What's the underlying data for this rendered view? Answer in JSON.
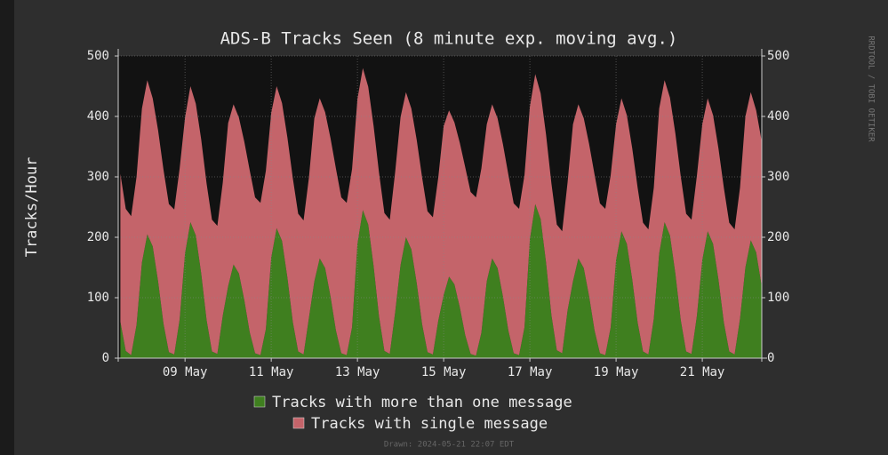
{
  "chart_data": {
    "type": "stacked_area",
    "title": "ADS-B Tracks Seen (8 minute exp. moving avg.)",
    "ylabel": "Tracks/Hour",
    "side_text": "RRDTOOL / TOBI OETIKER",
    "footer": "Drawn: 2024-05-21 22:07 EDT",
    "xlim": [
      7.45,
      22.38
    ],
    "xticks": [
      {
        "value": 9,
        "label": "09 May"
      },
      {
        "value": 11,
        "label": "11 May"
      },
      {
        "value": 13,
        "label": "13 May"
      },
      {
        "value": 15,
        "label": "15 May"
      },
      {
        "value": 17,
        "label": "17 May"
      },
      {
        "value": 19,
        "label": "19 May"
      },
      {
        "value": 21,
        "label": "21 May"
      }
    ],
    "ylim": [
      0,
      500
    ],
    "yticks": [
      0,
      100,
      200,
      300,
      400,
      500
    ],
    "y2lim": [
      0,
      500
    ],
    "y2ticks": [
      0,
      100,
      200,
      300,
      400,
      500
    ],
    "grid": true,
    "x": [
      7.5,
      7.625,
      7.75,
      7.875,
      8,
      8.125,
      8.25,
      8.375,
      8.5,
      8.625,
      8.75,
      8.875,
      9,
      9.125,
      9.25,
      9.375,
      9.5,
      9.625,
      9.75,
      9.875,
      10,
      10.125,
      10.25,
      10.375,
      10.5,
      10.625,
      10.75,
      10.875,
      11,
      11.125,
      11.25,
      11.375,
      11.5,
      11.625,
      11.75,
      11.875,
      12,
      12.125,
      12.25,
      12.375,
      12.5,
      12.625,
      12.75,
      12.875,
      13,
      13.125,
      13.25,
      13.375,
      13.5,
      13.625,
      13.75,
      13.875,
      14,
      14.125,
      14.25,
      14.375,
      14.5,
      14.625,
      14.75,
      14.875,
      15,
      15.125,
      15.25,
      15.375,
      15.5,
      15.625,
      15.75,
      15.875,
      16,
      16.125,
      16.25,
      16.375,
      16.5,
      16.625,
      16.75,
      16.875,
      17,
      17.125,
      17.25,
      17.375,
      17.5,
      17.625,
      17.75,
      17.875,
      18,
      18.125,
      18.25,
      18.375,
      18.5,
      18.625,
      18.75,
      18.875,
      19,
      19.125,
      19.25,
      19.375,
      19.5,
      19.625,
      19.75,
      19.875,
      20,
      20.125,
      20.25,
      20.375,
      20.5,
      20.625,
      20.75,
      20.875,
      21,
      21.125,
      21.25,
      21.375,
      21.5,
      21.625,
      21.75,
      21.875,
      22,
      22.125,
      22.25,
      22.375
    ],
    "series": [
      {
        "name": "Tracks with more than one message",
        "color": "#3f7f1f",
        "values": [
          60,
          12,
          5,
          55,
          158,
          205,
          185,
          127,
          57,
          10,
          6,
          64,
          173,
          225,
          203,
          140,
          63,
          11,
          7,
          70,
          119,
          155,
          140,
          96,
          43,
          8,
          5,
          48,
          166,
          215,
          194,
          133,
          60,
          11,
          6,
          67,
          127,
          165,
          149,
          102,
          46,
          8,
          5,
          51,
          189,
          245,
          221,
          152,
          69,
          12,
          7,
          76,
          154,
          200,
          180,
          124,
          56,
          10,
          6,
          62,
          104,
          135,
          122,
          84,
          38,
          7,
          4,
          42,
          127,
          165,
          149,
          102,
          46,
          8,
          5,
          51,
          196,
          255,
          230,
          158,
          71,
          13,
          8,
          79,
          127,
          165,
          149,
          102,
          46,
          8,
          5,
          51,
          162,
          210,
          189,
          130,
          59,
          11,
          6,
          65,
          173,
          225,
          203,
          140,
          63,
          11,
          7,
          70,
          162,
          210,
          189,
          130,
          59,
          11,
          6,
          65,
          150,
          195,
          175,
          120
        ]
      },
      {
        "name": "Tracks with single message",
        "color": "#c4646a",
        "values": [
          245,
          235,
          230,
          245,
          255,
          255,
          245,
          250,
          255,
          245,
          240,
          250,
          225,
          225,
          218,
          222,
          226,
          218,
          212,
          220,
          270,
          265,
          258,
          262,
          268,
          258,
          252,
          262,
          240,
          235,
          228,
          232,
          238,
          228,
          222,
          232,
          270,
          265,
          258,
          262,
          268,
          258,
          252,
          262,
          240,
          235,
          228,
          232,
          238,
          228,
          222,
          232,
          245,
          240,
          233,
          237,
          243,
          233,
          227,
          237,
          280,
          275,
          268,
          272,
          278,
          268,
          262,
          272,
          260,
          255,
          248,
          252,
          258,
          248,
          242,
          252,
          220,
          215,
          208,
          212,
          218,
          208,
          202,
          212,
          260,
          255,
          248,
          252,
          258,
          248,
          242,
          252,
          225,
          220,
          213,
          217,
          223,
          213,
          207,
          217,
          240,
          235,
          228,
          232,
          238,
          228,
          222,
          232,
          225,
          220,
          213,
          217,
          223,
          213,
          207,
          217,
          250,
          245,
          235,
          240
        ]
      }
    ]
  }
}
